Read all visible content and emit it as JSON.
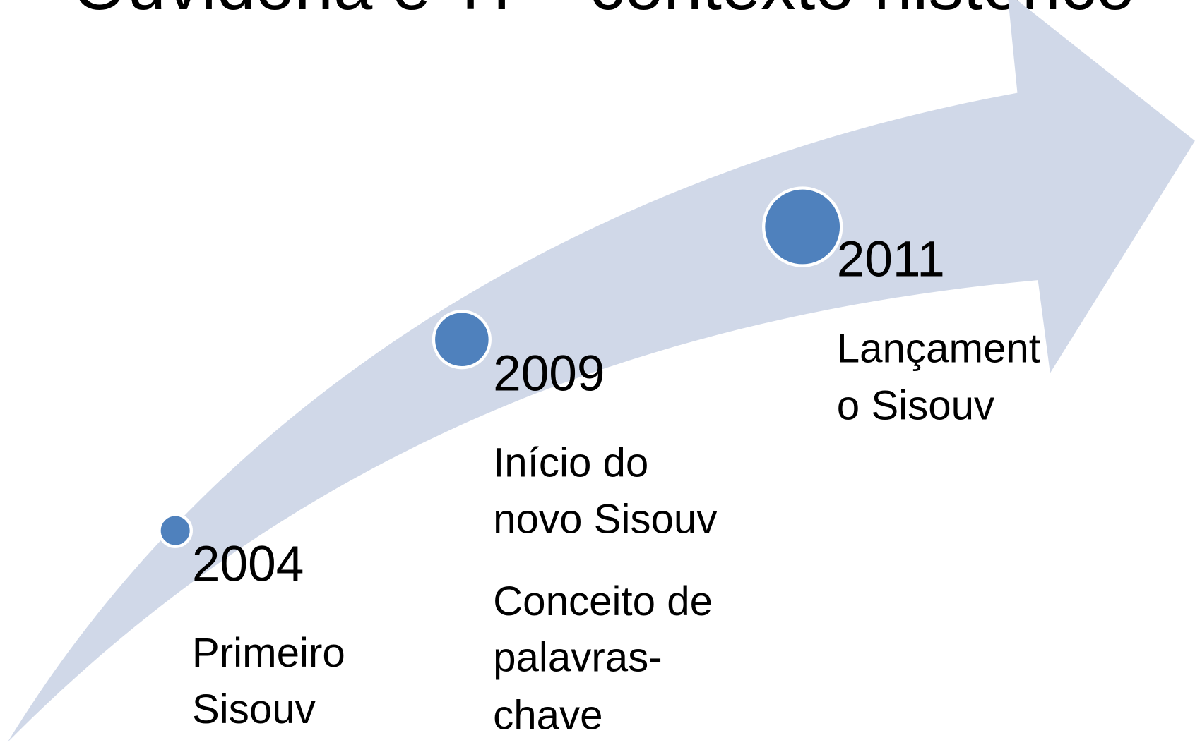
{
  "title": "Ouvidoria e TI – contexto histórico",
  "events": [
    {
      "year": "2004",
      "items": [
        [
          "Primeiro",
          "Sisouv"
        ]
      ]
    },
    {
      "year": "2009",
      "items": [
        [
          "Início do",
          "novo Sisouv"
        ],
        [
          "Conceito de",
          "palavras-",
          "chave"
        ]
      ]
    },
    {
      "year": "2011",
      "items": [
        [
          "Lançament",
          "o Sisouv"
        ]
      ]
    }
  ]
}
